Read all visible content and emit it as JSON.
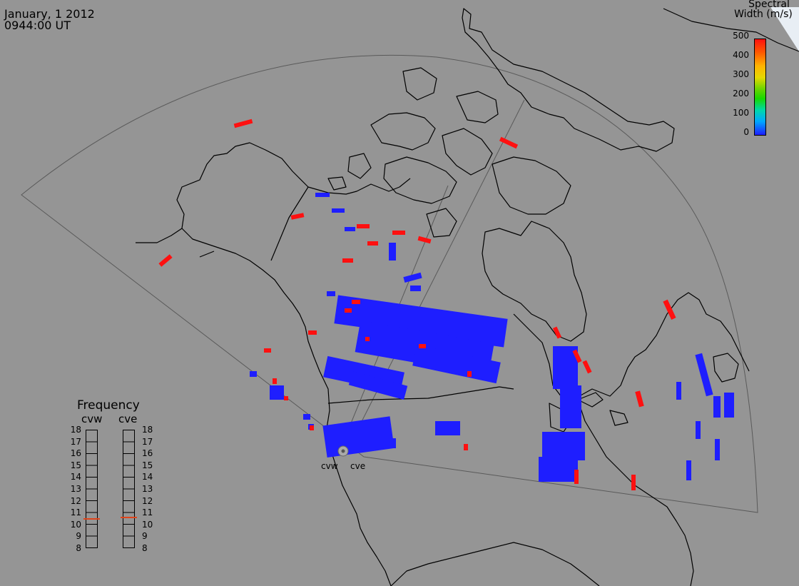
{
  "header": {
    "date": "January, 1 2012",
    "time": "0944:00 UT"
  },
  "colorbar": {
    "title_line1": "Spectral",
    "title_line2": "Width (m/s)",
    "ticks": [
      "500",
      "400",
      "300",
      "200",
      "100",
      "0"
    ],
    "colors": [
      "#1e1eff",
      "#00a8ff",
      "#18d800",
      "#e6d800",
      "#ff5a00",
      "#ff1010"
    ]
  },
  "frequency": {
    "title": "Frequency",
    "radars": [
      {
        "name": "cvw",
        "frequency_mhz": 10.5
      },
      {
        "name": "cve",
        "frequency_mhz": 10.6
      }
    ],
    "scale_min": 8,
    "scale_max": 18,
    "scale_labels": [
      "18",
      "17",
      "16",
      "15",
      "14",
      "13",
      "12",
      "11",
      "10",
      "9",
      "8"
    ]
  },
  "radar_sites": [
    "cvw",
    "cve"
  ],
  "map_style": {
    "background": "#959595",
    "coastline": "#000000",
    "fov_outline": "#555555",
    "scatter_low": "#1e1eff",
    "scatter_high": "#ff1010"
  }
}
